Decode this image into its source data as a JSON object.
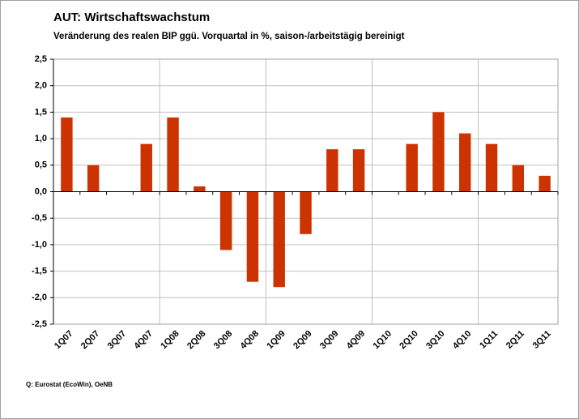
{
  "chart_data": {
    "type": "bar",
    "title": "AUT: Wirtschaftswachstum",
    "subtitle": "Veränderung des realen BIP ggü. Vorquartal in %, saison-/arbeitstägig bereinigt",
    "source": "Q: Eurostat (EcoWin), OeNB",
    "categories": [
      "1Q07",
      "2Q07",
      "3Q07",
      "4Q07",
      "1Q08",
      "2Q08",
      "3Q08",
      "4Q08",
      "1Q09",
      "2Q09",
      "3Q09",
      "4Q09",
      "1Q10",
      "2Q10",
      "3Q10",
      "4Q10",
      "1Q11",
      "2Q11",
      "3Q11"
    ],
    "values": [
      1.4,
      0.5,
      0,
      0.9,
      1.4,
      0.1,
      -1.1,
      -1.7,
      -1.8,
      -0.8,
      0.8,
      0.8,
      0,
      0.9,
      1.5,
      1.1,
      0.9,
      0.5,
      0.3
    ],
    "color": "#cc3300",
    "ylim": [
      -2.5,
      2.5
    ],
    "yticks": [
      {
        "value": -2.5,
        "label": "-2,5"
      },
      {
        "value": -2,
        "label": "-2,0"
      },
      {
        "value": -1.5,
        "label": "-1,5"
      },
      {
        "value": -1,
        "label": "-1,0"
      },
      {
        "value": -0.5,
        "label": "-0,5"
      },
      {
        "value": 0,
        "label": "0,0"
      },
      {
        "value": 0.5,
        "label": "0,5"
      },
      {
        "value": 1,
        "label": "1,0"
      },
      {
        "value": 1.5,
        "label": "1,5"
      },
      {
        "value": 2,
        "label": "2,0"
      },
      {
        "value": 2.5,
        "label": "2,5"
      }
    ],
    "grid": true
  }
}
